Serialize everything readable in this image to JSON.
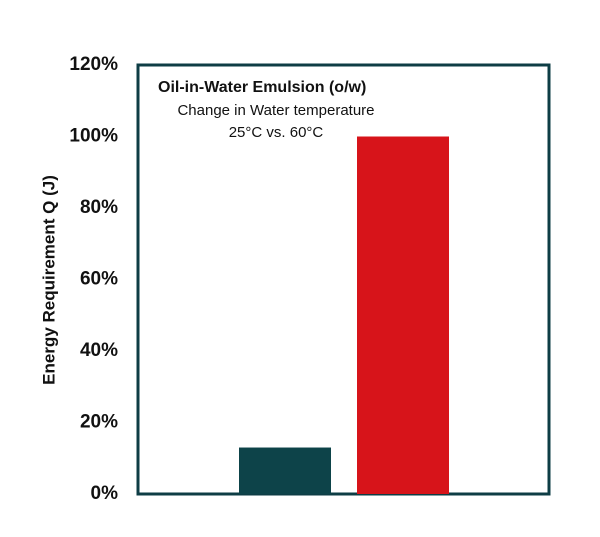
{
  "chart_data": {
    "type": "bar",
    "title": "Oil-in-Water Emulsion (o/w)",
    "subtitle": "Change in Water temperature",
    "annotation": "25°C  vs.  60°C",
    "y_label": "Energy Requirement Q (J)",
    "categories": [
      null,
      null
    ],
    "values": [
      13,
      100
    ],
    "colors": [
      "#0d4349",
      "#d7141a"
    ],
    "ylim": [
      0,
      120
    ],
    "yticks": [
      {
        "value": 0,
        "label": "0%"
      },
      {
        "value": 20,
        "label": "20%"
      },
      {
        "value": 40,
        "label": "40%"
      },
      {
        "value": 60,
        "label": "60%"
      },
      {
        "value": 80,
        "label": "80%"
      },
      {
        "value": 100,
        "label": "100%"
      },
      {
        "value": 120,
        "label": "120%"
      }
    ],
    "grid": false
  }
}
